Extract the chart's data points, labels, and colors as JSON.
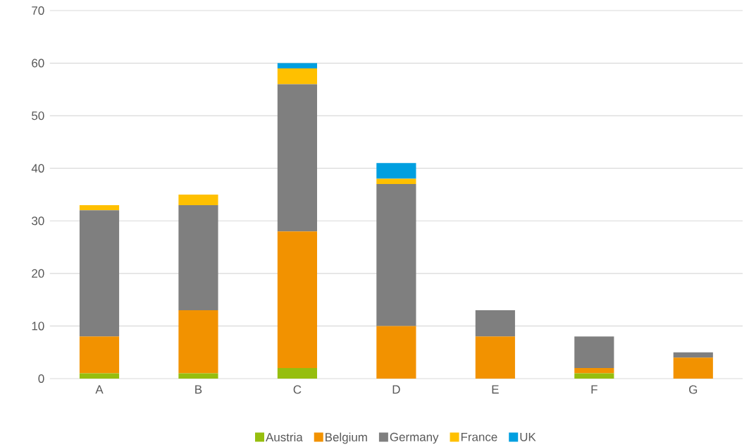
{
  "chart_data": {
    "type": "bar",
    "stacked": true,
    "categories": [
      "A",
      "B",
      "C",
      "D",
      "E",
      "F",
      "G"
    ],
    "series": [
      {
        "name": "Austria",
        "color": "#96be0e",
        "values": [
          1,
          1,
          2,
          0,
          0,
          1,
          0
        ]
      },
      {
        "name": "Belgium",
        "color": "#f29200",
        "values": [
          7,
          12,
          26,
          10,
          8,
          1,
          4
        ]
      },
      {
        "name": "Germany",
        "color": "#7f7f7f",
        "values": [
          24,
          20,
          28,
          27,
          5,
          6,
          1
        ]
      },
      {
        "name": "France",
        "color": "#ffc000",
        "values": [
          1,
          2,
          3,
          1,
          0,
          0,
          0
        ]
      },
      {
        "name": "UK",
        "color": "#009fe0",
        "values": [
          0,
          0,
          1,
          3,
          0,
          0,
          0
        ]
      }
    ],
    "ylim": [
      0,
      70
    ],
    "yticks": [
      0,
      10,
      20,
      30,
      40,
      50,
      60,
      70
    ],
    "grid": "y",
    "legend": "bottom"
  }
}
